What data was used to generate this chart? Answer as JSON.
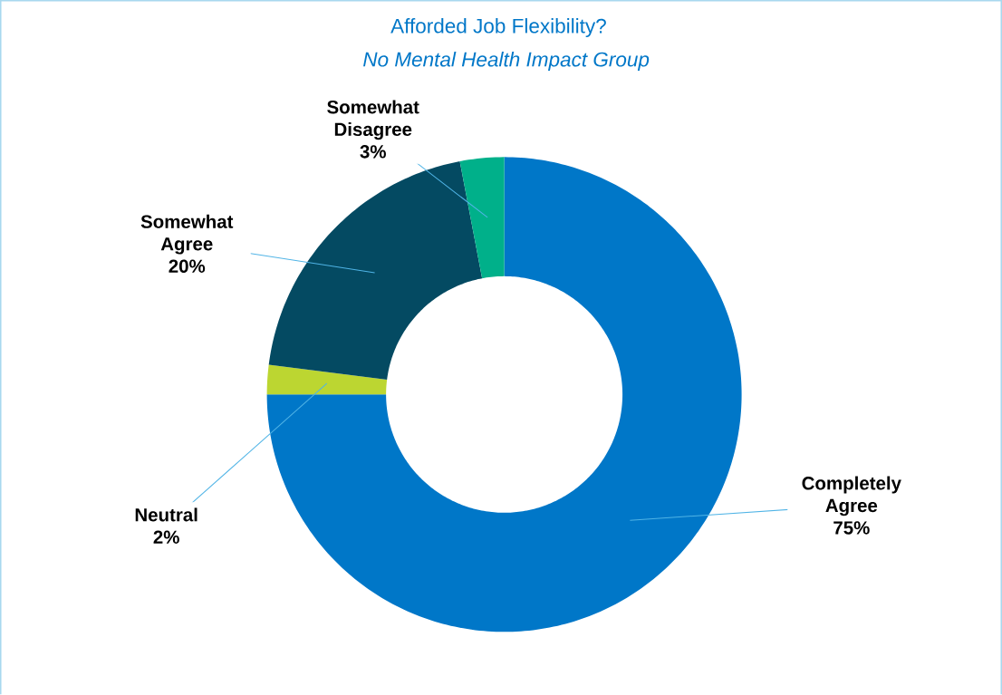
{
  "chart_data": {
    "type": "donut",
    "title": "Afforded Job Flexibility?",
    "subtitle": "No Mental Health Impact Group",
    "categories": [
      "Completely Agree",
      "Neutral",
      "Somewhat Agree",
      "Somewhat Disagree"
    ],
    "values": [
      75,
      2,
      20,
      3
    ],
    "value_labels": [
      "75%",
      "2%",
      "20%",
      "3%"
    ],
    "colors": [
      "#0077c8",
      "#bcd631",
      "#044a62",
      "#00b08a"
    ]
  }
}
